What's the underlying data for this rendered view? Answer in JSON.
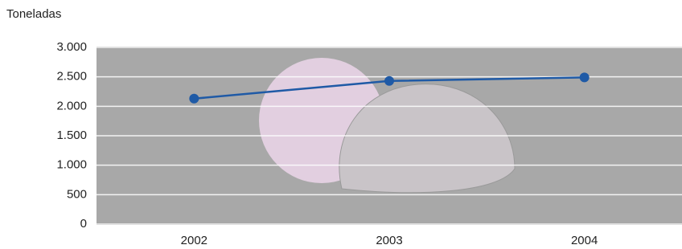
{
  "chart_data": {
    "type": "line",
    "y_label": "Toneladas",
    "categories": [
      "2002",
      "2003",
      "2004"
    ],
    "values": [
      2130,
      2430,
      2490
    ],
    "color": "#1f5aa6",
    "ylim": [
      0,
      3000
    ],
    "yticks": [
      0,
      500,
      {
        "value": 1000,
        "label": "1.000"
      },
      {
        "value": 1500,
        "label": "1.500"
      },
      {
        "value": 2000,
        "label": "2.000"
      },
      {
        "value": 2500,
        "label": "2.500"
      },
      {
        "value": 3000,
        "label": "3.000"
      }
    ],
    "grid": true
  }
}
